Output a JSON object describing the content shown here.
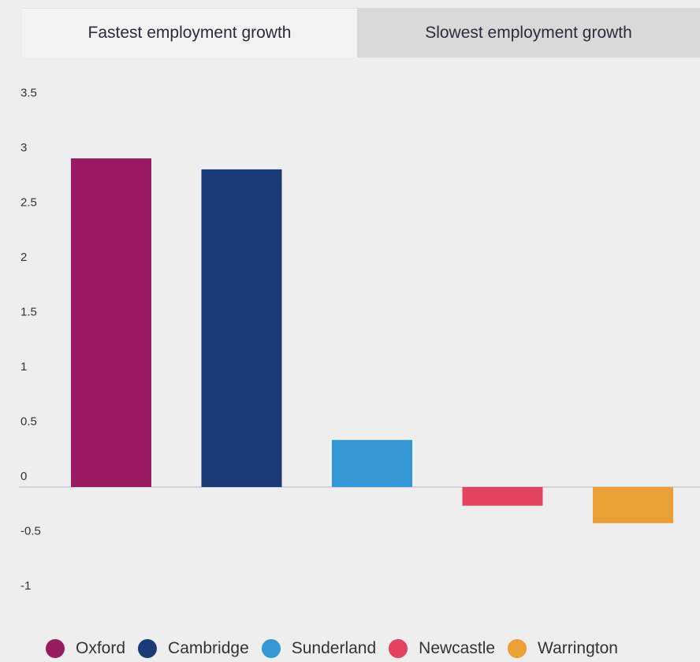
{
  "tabs": [
    {
      "label": "Fastest employment growth",
      "active": true
    },
    {
      "label": "Slowest employment growth",
      "active": false
    }
  ],
  "chart_data": {
    "type": "bar",
    "categories": [
      "Oxford",
      "Cambridge",
      "Sunderland",
      "Newcastle",
      "Warrington"
    ],
    "values": [
      3.0,
      2.9,
      0.43,
      -0.17,
      -0.33
    ],
    "colors": [
      "#9b1b62",
      "#1b3a78",
      "#3598d4",
      "#e3435f",
      "#e9a035"
    ],
    "ylim": [
      -1,
      3.5
    ],
    "yticks": [
      "3.5",
      "3",
      "2.5",
      "2",
      "1.5",
      "1",
      "0.5",
      "0",
      "-0.5",
      "-1"
    ],
    "legend_placement": "bottom",
    "grid": false
  }
}
